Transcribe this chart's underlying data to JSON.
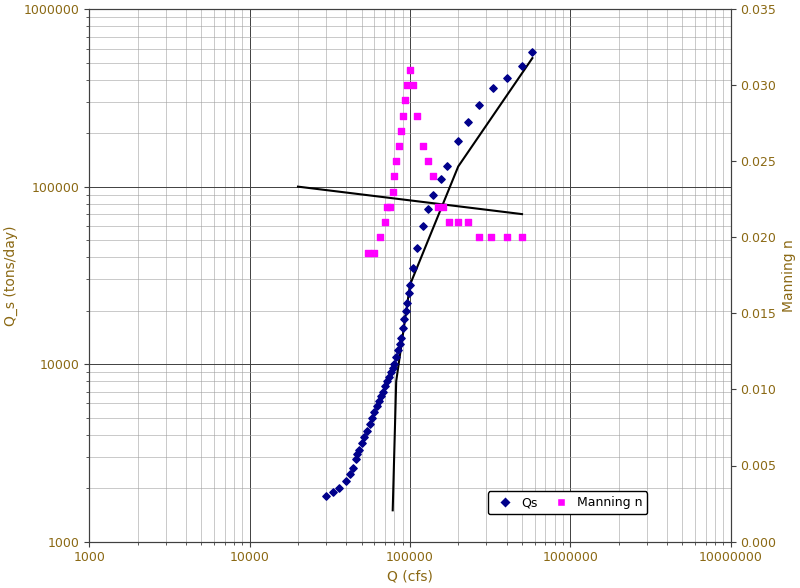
{
  "xlabel": "Q (cfs)",
  "ylabel": "Q_s (tons/day)",
  "ylabel2": "Manning n",
  "xlim": [
    1000,
    10000000
  ],
  "ylim_left": [
    1000,
    1000000
  ],
  "ylim_right": [
    0.0,
    0.035
  ],
  "yticks_right": [
    0.0,
    0.005,
    0.01,
    0.015,
    0.02,
    0.025,
    0.03,
    0.035
  ],
  "scatter_Qs_x": [
    30000,
    33000,
    36000,
    40000,
    42000,
    44000,
    46000,
    47000,
    48000,
    50000,
    52000,
    54000,
    56000,
    58000,
    60000,
    62000,
    64000,
    66000,
    68000,
    70000,
    72000,
    74000,
    76000,
    78000,
    80000,
    82000,
    84000,
    86000,
    88000,
    90000,
    92000,
    94000,
    96000,
    98000,
    100000,
    105000,
    110000,
    120000,
    130000,
    140000,
    155000,
    170000,
    200000,
    230000,
    270000,
    330000,
    400000,
    500000,
    580000
  ],
  "scatter_Qs_y": [
    1800,
    1900,
    2000,
    2200,
    2400,
    2600,
    2900,
    3100,
    3300,
    3600,
    3900,
    4200,
    4600,
    5000,
    5400,
    5800,
    6200,
    6600,
    7000,
    7500,
    8000,
    8500,
    9000,
    9500,
    10000,
    11000,
    12000,
    13000,
    14000,
    16000,
    18000,
    20000,
    22000,
    25000,
    28000,
    35000,
    45000,
    60000,
    75000,
    90000,
    110000,
    130000,
    180000,
    230000,
    290000,
    360000,
    410000,
    480000,
    570000
  ],
  "scatter_Manning_x": [
    55000,
    60000,
    65000,
    70000,
    72000,
    75000,
    78000,
    80000,
    82000,
    85000,
    88000,
    90000,
    93000,
    96000,
    100000,
    105000,
    110000,
    120000,
    130000,
    140000,
    150000,
    160000,
    175000,
    200000,
    230000,
    270000,
    320000,
    400000,
    500000
  ],
  "scatter_Manning_y_raw": [
    0.019,
    0.019,
    0.02,
    0.021,
    0.022,
    0.022,
    0.023,
    0.024,
    0.025,
    0.026,
    0.027,
    0.028,
    0.029,
    0.03,
    0.031,
    0.03,
    0.028,
    0.026,
    0.025,
    0.024,
    0.022,
    0.022,
    0.021,
    0.021,
    0.021,
    0.02,
    0.02,
    0.02,
    0.02
  ],
  "line1_x": [
    20000,
    500000
  ],
  "line1_y": [
    100000,
    70000
  ],
  "line2_x": [
    78000,
    82000,
    100000,
    200000,
    580000
  ],
  "line2_y": [
    1500,
    8000,
    28000,
    130000,
    530000
  ],
  "Qs_color": "#00008B",
  "Manning_color": "#FF00FF",
  "line_color": "black",
  "bg_color": "white",
  "grid_major_color": "#404040",
  "grid_minor_color": "#A0A0A0",
  "tick_label_color": "#8B6914",
  "label_color": "#8B6914",
  "figure_size": [
    8.0,
    5.88
  ],
  "dpi": 100
}
